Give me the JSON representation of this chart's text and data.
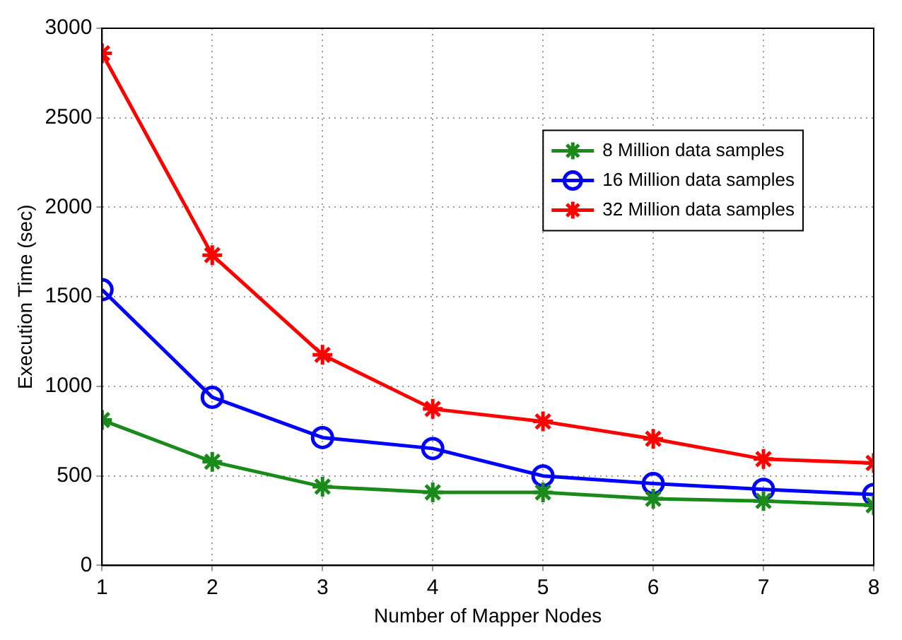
{
  "chart_data": {
    "type": "line",
    "xlabel": "Number of Mapper Nodes",
    "ylabel": "Execution Time (sec)",
    "x": [
      1,
      2,
      3,
      4,
      5,
      6,
      7,
      8
    ],
    "series": [
      {
        "name": "8 Million data samples",
        "color": "#1a8a1a",
        "marker": "cross",
        "values": [
          812,
          579,
          440,
          408,
          408,
          372,
          360,
          336
        ]
      },
      {
        "name": "16 Million data samples",
        "color": "#0000ff",
        "marker": "circle",
        "values": [
          1540,
          939,
          714,
          653,
          500,
          457,
          425,
          396
        ]
      },
      {
        "name": "32 Million data samples",
        "color": "#ff0000",
        "marker": "cross",
        "values": [
          2860,
          1733,
          1176,
          874,
          804,
          707,
          594,
          572
        ]
      }
    ],
    "xlim": [
      1,
      8
    ],
    "xticks": [
      1,
      2,
      3,
      4,
      5,
      6,
      7,
      8
    ],
    "ylim": [
      0,
      3000
    ],
    "yticks": [
      0,
      500,
      1000,
      1500,
      2000,
      2500,
      3000
    ],
    "grid": true,
    "legend": "top right",
    "line_style": "solid"
  }
}
